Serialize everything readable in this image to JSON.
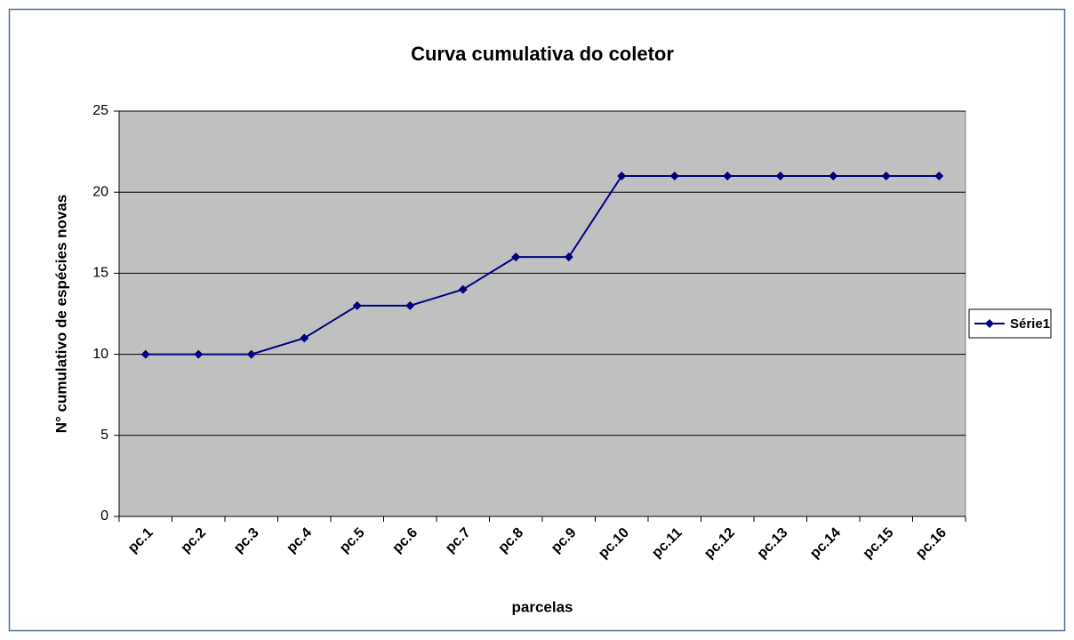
{
  "chart_data": {
    "type": "line",
    "title": "Curva cumulativa do coletor",
    "x_label": "parcelas",
    "y_label": "N° cumulativo de espécies novas",
    "categories": [
      "pc.1",
      "pc.2",
      "pc.3",
      "pc.4",
      "pc.5",
      "pc.6",
      "pc.7",
      "pc.8",
      "pc.9",
      "pc.10",
      "pc.11",
      "pc.12",
      "pc.13",
      "pc.14",
      "pc.15",
      "pc.16"
    ],
    "series": [
      {
        "name": "Série1",
        "color": "#000080",
        "values": [
          10,
          10,
          10,
          11,
          13,
          13,
          14,
          16,
          16,
          21,
          21,
          21,
          21,
          21,
          21,
          21
        ]
      }
    ],
    "ylim": [
      0,
      25
    ],
    "yticks": [
      0,
      5,
      10,
      15,
      20,
      25
    ],
    "grid": true,
    "legend": "right"
  }
}
